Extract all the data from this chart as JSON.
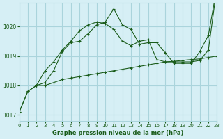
{
  "title": "Graphe pression niveau de la mer (hPa)",
  "bg_color": "#d6eff5",
  "grid_color": "#aad4dc",
  "line_color_dark": "#1a5c1a",
  "line_color_mid": "#2d7a2d",
  "xlim": [
    0,
    23
  ],
  "ylim": [
    1016.8,
    1020.8
  ],
  "yticks": [
    1017,
    1018,
    1019,
    1020
  ],
  "xticks": [
    0,
    1,
    2,
    3,
    4,
    5,
    6,
    7,
    8,
    9,
    10,
    11,
    12,
    13,
    14,
    15,
    16,
    17,
    18,
    19,
    20,
    21,
    22,
    23
  ],
  "line1_x": [
    0,
    1,
    2,
    3,
    4,
    5,
    6,
    7,
    8,
    9,
    10,
    11,
    12,
    13,
    14,
    15,
    16,
    17,
    18,
    19,
    20,
    21,
    22,
    23
  ],
  "line1_y": [
    1017.1,
    1017.8,
    1018.0,
    1018.1,
    1018.5,
    1019.15,
    1019.45,
    1019.5,
    1019.75,
    1020.05,
    1020.15,
    1020.6,
    1020.05,
    1019.9,
    1019.4,
    1019.45,
    1019.45,
    1019.1,
    1018.75,
    1018.75,
    1018.75,
    1019.15,
    1019.7,
    1021.35
  ],
  "line2_x": [
    0,
    1,
    2,
    3,
    4,
    5,
    6,
    7,
    8,
    9,
    10,
    11,
    12,
    13,
    14,
    15,
    16,
    17,
    18,
    19,
    20,
    21,
    22,
    23
  ],
  "line2_y": [
    1017.1,
    1017.8,
    1018.0,
    1018.0,
    1018.1,
    1018.2,
    1018.25,
    1018.3,
    1018.35,
    1018.4,
    1018.45,
    1018.5,
    1018.55,
    1018.6,
    1018.65,
    1018.7,
    1018.75,
    1018.8,
    1018.82,
    1018.85,
    1018.88,
    1018.9,
    1018.95,
    1019.0
  ],
  "line3_x": [
    2,
    3,
    4,
    5,
    6,
    7,
    8,
    9,
    10,
    11,
    12,
    13,
    14,
    15,
    16,
    17,
    18,
    19,
    20,
    21,
    22,
    23
  ],
  "line3_y": [
    1018.0,
    1018.5,
    1018.8,
    1019.2,
    1019.5,
    1019.85,
    1020.05,
    1020.15,
    1020.1,
    1019.9,
    1019.5,
    1019.35,
    1019.5,
    1019.55,
    1018.88,
    1018.8,
    1018.8,
    1018.8,
    1018.8,
    1018.85,
    1019.2,
    1021.35
  ]
}
